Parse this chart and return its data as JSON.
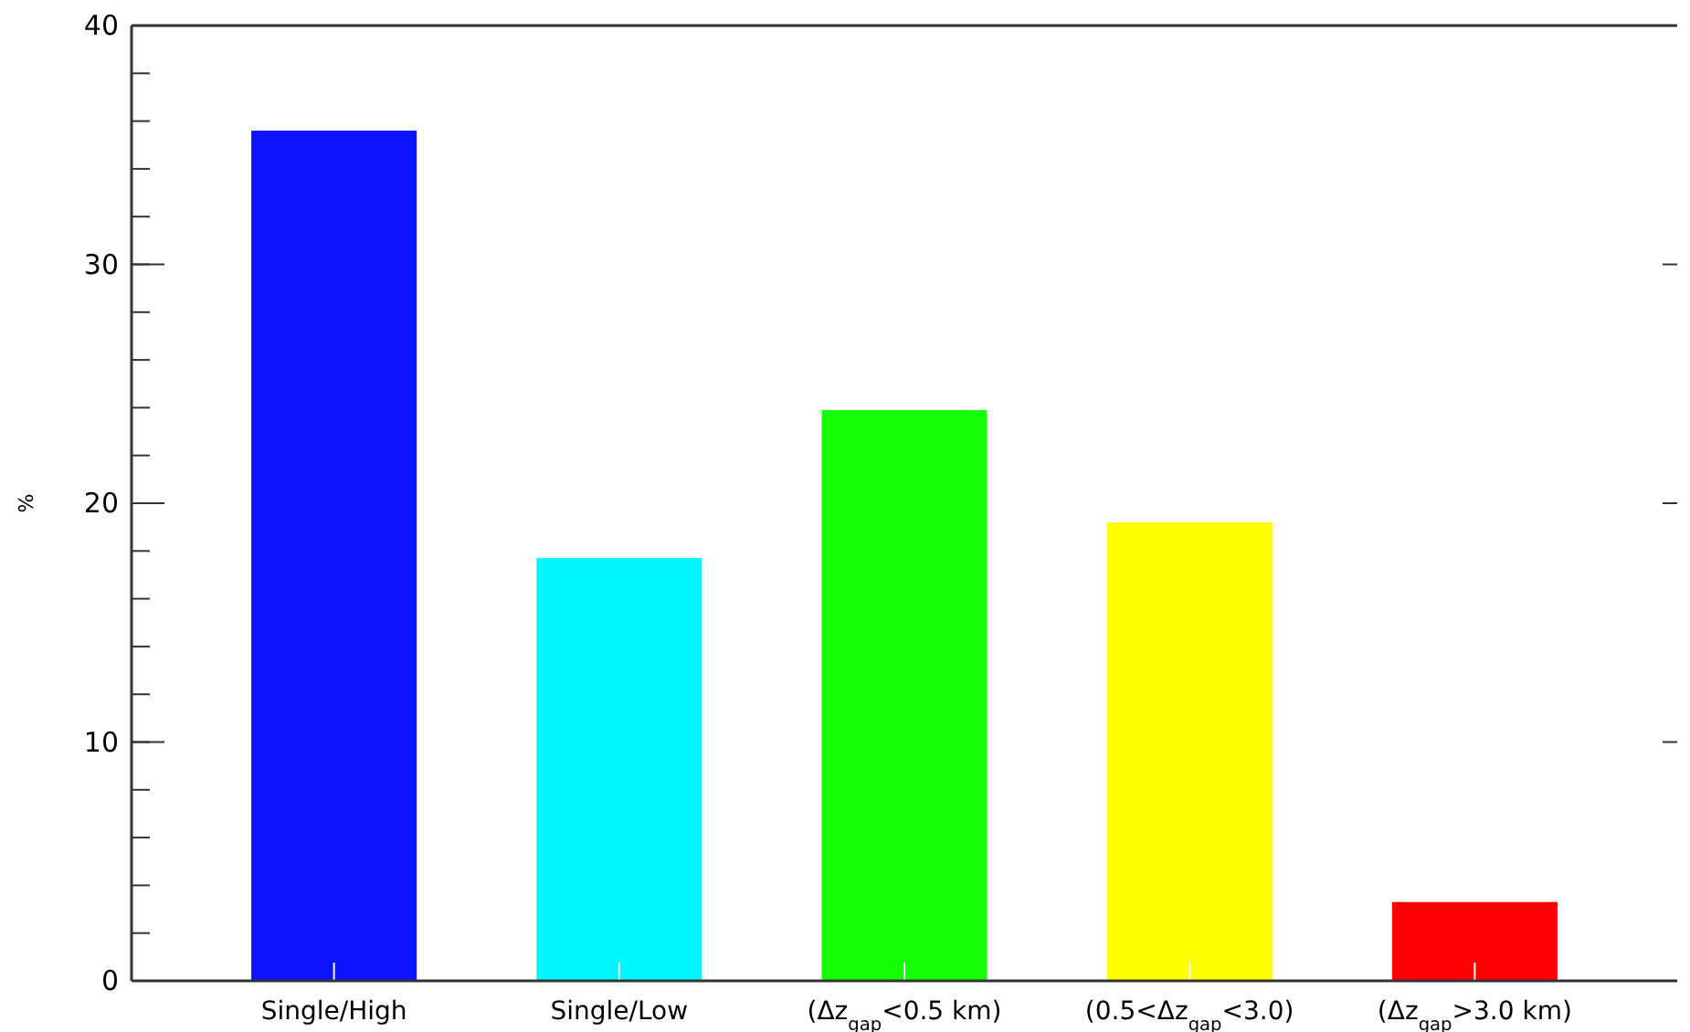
{
  "chart_data": {
    "type": "bar",
    "ylabel": "%",
    "categories": [
      "Single/High",
      "Single/Low",
      "(Δz$_{gap}$<0.5 km)",
      "(0.5<Δz$_{gap}$<3.0)",
      "(Δz$_{gap}$>3.0 km)"
    ],
    "values": [
      35.6,
      17.7,
      23.9,
      19.2,
      3.3
    ],
    "colors": [
      "#0a14ff",
      "#00f7ff",
      "#14ff00",
      "#ffff00",
      "#ff0000"
    ],
    "ylim": [
      0,
      40
    ],
    "yticks": [
      0,
      10,
      20,
      30,
      40
    ]
  }
}
